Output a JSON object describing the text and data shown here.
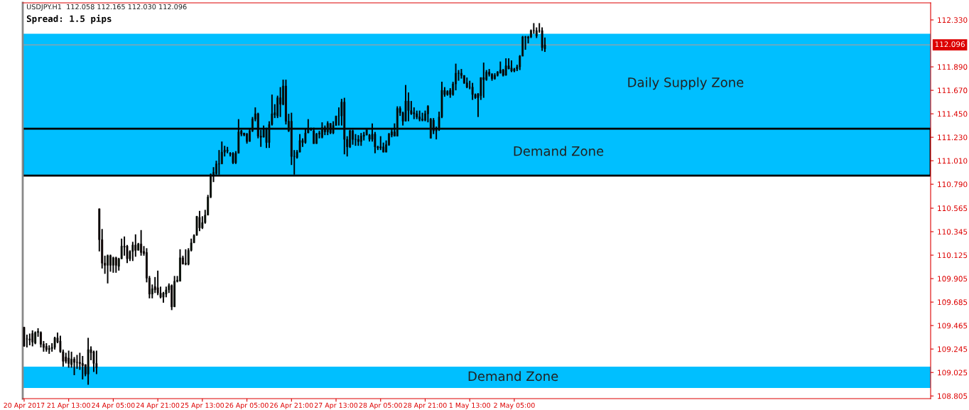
{
  "chart_data": {
    "type": "candlestick",
    "title": "USDJPY.H1  112.058 112.165 112.030 112.096",
    "subtitle": "Spread: 1.5 pips",
    "categories": [
      "20 Apr 2017",
      null,
      null,
      null,
      null,
      null,
      null,
      null,
      null,
      null,
      null,
      null,
      null,
      null,
      null,
      null,
      "21 Apr 13:00",
      null,
      null,
      null,
      null,
      null,
      null,
      null,
      null,
      null,
      null,
      null,
      null,
      null,
      null,
      null,
      "24 Apr 05:00",
      null,
      null,
      null,
      null,
      null,
      null,
      null,
      null,
      null,
      null,
      null,
      null,
      null,
      null,
      null,
      "24 Apr 21:00",
      null,
      null,
      null,
      null,
      null,
      null,
      null,
      null,
      null,
      null,
      null,
      null,
      null,
      null,
      null,
      "25 Apr 13:00",
      null,
      null,
      null,
      null,
      null,
      null,
      null,
      null,
      null,
      null,
      null,
      null,
      null,
      null,
      null,
      "26 Apr 05:00",
      null,
      null,
      null,
      null,
      null,
      null,
      null,
      null,
      null,
      null,
      null,
      null,
      null,
      null,
      null,
      "26 Apr 21:00",
      null,
      null,
      null,
      null,
      null,
      null,
      null,
      null,
      null,
      null,
      null,
      null,
      null,
      null,
      null,
      "27 Apr 13:00",
      null,
      null,
      null,
      null,
      null,
      null,
      null,
      null,
      null,
      null,
      null,
      null,
      null,
      null,
      null,
      "28 Apr 05:00",
      null,
      null,
      null,
      null,
      null,
      null,
      null,
      null,
      null,
      null,
      null,
      null,
      null,
      null,
      null,
      "28 Apr 21:00",
      null,
      null,
      null,
      null,
      null,
      null,
      null,
      null,
      null,
      null,
      null,
      null,
      null,
      null,
      null,
      "1 May 13:00",
      null,
      null,
      null,
      null,
      null,
      null,
      null,
      null,
      null,
      null,
      null,
      null,
      null,
      null,
      null,
      "2 May 05:00",
      null,
      null,
      null,
      null,
      null,
      null,
      null,
      null,
      null,
      null,
      null,
      null,
      null,
      null,
      null,
      null,
      null,
      null,
      null,
      null,
      null,
      null,
      null,
      null,
      null,
      null,
      null,
      null,
      null,
      null,
      null,
      null,
      null,
      null,
      null,
      null,
      null,
      null,
      null,
      null,
      null,
      null,
      null,
      null,
      null,
      null,
      null,
      null,
      null,
      null,
      null,
      null,
      null,
      null,
      null,
      null,
      null,
      null,
      null,
      null,
      null,
      null,
      null,
      null,
      null,
      null,
      null,
      null,
      null,
      null,
      null,
      null,
      null,
      null,
      null,
      null,
      null,
      null,
      null,
      null,
      null,
      null,
      null,
      null,
      null,
      null,
      null,
      null,
      null,
      null,
      null,
      null,
      null,
      null,
      null,
      null,
      null,
      null,
      null,
      null,
      null,
      null,
      null,
      null,
      null,
      null,
      null,
      null,
      null,
      null,
      null,
      null,
      null,
      null,
      null,
      null,
      null,
      null,
      null,
      null,
      null,
      null,
      null,
      null,
      null,
      null,
      null,
      null,
      null,
      null,
      null,
      null,
      null,
      null,
      null,
      null,
      null,
      null,
      null,
      null,
      null,
      null,
      null,
      null,
      null,
      null,
      null,
      null,
      null
    ],
    "ohlc": [
      [
        109.45,
        109.45,
        109.27,
        109.27
      ],
      [
        109.34,
        109.38,
        109.26,
        109.34
      ],
      [
        109.34,
        109.39,
        109.28,
        109.33
      ],
      [
        109.39,
        109.42,
        109.27,
        109.31
      ],
      [
        109.3,
        109.41,
        109.29,
        109.4
      ],
      [
        109.4,
        109.44,
        109.36,
        109.41
      ],
      [
        109.4,
        109.41,
        109.26,
        109.29
      ],
      [
        109.29,
        109.32,
        109.22,
        109.26
      ],
      [
        109.27,
        109.3,
        109.22,
        109.24
      ],
      [
        109.24,
        109.28,
        109.2,
        109.25
      ],
      [
        109.25,
        109.3,
        109.22,
        109.26
      ],
      [
        109.26,
        109.36,
        109.24,
        109.35
      ],
      [
        109.35,
        109.4,
        109.3,
        109.31
      ],
      [
        109.32,
        109.37,
        109.21,
        109.22
      ],
      [
        109.22,
        109.24,
        109.08,
        109.13
      ],
      [
        109.17,
        109.21,
        109.11,
        109.13
      ],
      [
        109.16,
        109.23,
        109.07,
        109.11
      ],
      [
        109.1,
        109.22,
        109.07,
        109.15
      ],
      [
        109.15,
        109.17,
        109.0,
        109.12
      ],
      [
        109.12,
        109.19,
        109.06,
        109.12
      ],
      [
        109.12,
        109.21,
        109.05,
        109.11
      ],
      [
        109.11,
        109.18,
        108.96,
        109.09
      ],
      [
        109.1,
        109.1,
        108.99,
        109.01
      ],
      [
        109.01,
        109.35,
        108.91,
        109.24
      ],
      [
        109.24,
        109.27,
        109.14,
        109.21
      ],
      [
        109.22,
        109.23,
        109.03,
        109.11
      ],
      [
        109.11,
        109.23,
        109.01,
        109.07
      ],
      [
        110.56,
        110.56,
        110.16,
        110.27
      ],
      [
        110.27,
        110.37,
        110.0,
        110.05
      ],
      [
        110.05,
        110.12,
        109.95,
        110.03
      ],
      [
        110.03,
        110.13,
        109.86,
        110.12
      ],
      [
        110.12,
        110.13,
        109.97,
        110.03
      ],
      [
        110.03,
        110.11,
        109.96,
        110.1
      ],
      [
        110.1,
        110.11,
        109.96,
        110.03
      ],
      [
        110.02,
        110.1,
        109.98,
        110.09
      ],
      [
        110.09,
        110.28,
        110.09,
        110.21
      ],
      [
        110.21,
        110.3,
        110.12,
        110.2
      ],
      [
        110.21,
        110.22,
        110.05,
        110.09
      ],
      [
        110.09,
        110.17,
        110.07,
        110.16
      ],
      [
        110.16,
        110.25,
        110.07,
        110.22
      ],
      [
        110.22,
        110.32,
        110.11,
        110.17
      ],
      [
        110.17,
        110.24,
        110.17,
        110.23
      ],
      [
        110.23,
        110.36,
        110.12,
        110.15
      ],
      [
        110.16,
        110.21,
        110.12,
        110.14
      ],
      [
        110.15,
        110.19,
        109.87,
        109.91
      ],
      [
        109.91,
        109.93,
        109.72,
        109.76
      ],
      [
        109.76,
        109.85,
        109.72,
        109.81
      ],
      [
        109.83,
        109.92,
        109.77,
        109.8
      ],
      [
        109.82,
        109.98,
        109.75,
        109.77
      ],
      [
        109.77,
        109.83,
        109.72,
        109.73
      ],
      [
        109.73,
        109.78,
        109.68,
        109.77
      ],
      [
        109.76,
        109.83,
        109.73,
        109.8
      ],
      [
        109.8,
        109.86,
        109.77,
        109.84
      ],
      [
        109.84,
        109.85,
        109.61,
        109.64
      ],
      [
        109.64,
        109.93,
        109.64,
        109.88
      ],
      [
        109.88,
        109.93,
        109.87,
        109.89
      ],
      [
        109.88,
        110.18,
        109.88,
        110.1
      ],
      [
        110.1,
        110.12,
        110.04,
        110.04
      ],
      [
        110.04,
        110.18,
        110.03,
        110.05
      ],
      [
        110.04,
        110.19,
        110.03,
        110.17
      ],
      [
        110.17,
        110.28,
        110.16,
        110.24
      ],
      [
        110.24,
        110.32,
        110.24,
        110.31
      ],
      [
        110.31,
        110.49,
        110.31,
        110.49
      ],
      [
        110.48,
        110.54,
        110.35,
        110.38
      ],
      [
        110.38,
        110.49,
        110.37,
        110.43
      ],
      [
        110.43,
        110.55,
        110.42,
        110.5
      ],
      [
        110.5,
        110.69,
        110.5,
        110.67
      ],
      [
        110.67,
        110.89,
        110.66,
        110.88
      ],
      [
        110.88,
        110.95,
        110.81,
        110.9
      ],
      [
        110.89,
        111.01,
        110.88,
        110.98
      ],
      [
        110.98,
        111.11,
        110.88,
        110.98
      ],
      [
        110.98,
        111.19,
        110.98,
        111.09
      ],
      [
        111.09,
        111.15,
        111.05,
        111.11
      ],
      [
        111.1,
        111.14,
        111.08,
        111.11
      ],
      [
        111.08,
        111.09,
        111.05,
        111.07
      ],
      [
        111.08,
        111.09,
        110.98,
        110.99
      ],
      [
        110.99,
        111.1,
        110.98,
        111.08
      ],
      [
        111.08,
        111.4,
        111.08,
        111.28
      ],
      [
        111.29,
        111.3,
        111.24,
        111.26
      ],
      [
        111.27,
        111.27,
        111.24,
        111.25
      ],
      [
        111.26,
        111.27,
        111.17,
        111.19
      ],
      [
        111.19,
        111.31,
        111.19,
        111.29
      ],
      [
        111.29,
        111.42,
        111.28,
        111.4
      ],
      [
        111.4,
        111.51,
        111.38,
        111.45
      ],
      [
        111.45,
        111.46,
        111.22,
        111.24
      ],
      [
        111.24,
        111.3,
        111.14,
        111.23
      ],
      [
        111.23,
        111.34,
        111.23,
        111.3
      ],
      [
        111.3,
        111.32,
        111.13,
        111.18
      ],
      [
        111.18,
        111.38,
        111.13,
        111.35
      ],
      [
        111.35,
        111.63,
        111.34,
        111.45
      ],
      [
        111.44,
        111.54,
        111.41,
        111.46
      ],
      [
        111.43,
        111.62,
        111.41,
        111.6
      ],
      [
        111.6,
        111.7,
        111.42,
        111.54
      ],
      [
        111.54,
        111.77,
        111.53,
        111.71
      ],
      [
        111.71,
        111.77,
        111.35,
        111.38
      ],
      [
        111.29,
        111.45,
        111.28,
        111.38
      ],
      [
        111.38,
        111.46,
        110.97,
        111.05
      ],
      [
        111.05,
        111.11,
        110.88,
        111.05
      ],
      [
        111.04,
        111.11,
        111.03,
        111.09
      ],
      [
        111.09,
        111.26,
        111.09,
        111.2
      ],
      [
        111.18,
        111.22,
        111.14,
        111.2
      ],
      [
        111.18,
        111.31,
        111.17,
        111.27
      ],
      [
        111.27,
        111.4,
        111.27,
        111.31
      ],
      [
        111.31,
        111.32,
        111.29,
        111.3
      ],
      [
        111.29,
        111.32,
        111.17,
        111.17
      ],
      [
        111.17,
        111.27,
        111.17,
        111.26
      ],
      [
        111.26,
        111.29,
        111.22,
        111.27
      ],
      [
        111.23,
        111.37,
        111.22,
        111.32
      ],
      [
        111.32,
        111.34,
        111.25,
        111.28
      ],
      [
        111.28,
        111.38,
        111.25,
        111.36
      ],
      [
        111.36,
        111.36,
        111.26,
        111.27
      ],
      [
        111.27,
        111.38,
        111.26,
        111.34
      ],
      [
        111.34,
        111.43,
        111.34,
        111.43
      ],
      [
        111.43,
        111.51,
        111.34,
        111.43
      ],
      [
        111.43,
        111.59,
        111.34,
        111.56
      ],
      [
        111.56,
        111.6,
        111.07,
        111.21
      ],
      [
        111.21,
        111.24,
        111.05,
        111.14
      ],
      [
        111.14,
        111.3,
        111.13,
        111.29
      ],
      [
        111.29,
        111.3,
        111.16,
        111.21
      ],
      [
        111.21,
        111.26,
        111.15,
        111.21
      ],
      [
        111.21,
        111.25,
        111.15,
        111.19
      ],
      [
        111.19,
        111.27,
        111.15,
        111.24
      ],
      [
        111.24,
        111.28,
        111.2,
        111.25
      ],
      [
        111.25,
        111.31,
        111.25,
        111.31
      ],
      [
        111.25,
        111.26,
        111.19,
        111.21
      ],
      [
        111.21,
        111.36,
        111.19,
        111.26
      ],
      [
        111.26,
        111.28,
        111.08,
        111.14
      ],
      [
        111.14,
        111.15,
        111.11,
        111.13
      ],
      [
        111.14,
        111.24,
        111.11,
        111.13
      ],
      [
        111.14,
        111.18,
        111.09,
        111.09
      ],
      [
        111.09,
        111.2,
        111.09,
        111.16
      ],
      [
        111.16,
        111.27,
        111.15,
        111.26
      ],
      [
        111.25,
        111.31,
        111.23,
        111.28
      ],
      [
        111.28,
        111.36,
        111.24,
        111.24
      ],
      [
        111.24,
        111.52,
        111.24,
        111.5
      ],
      [
        111.5,
        111.52,
        111.43,
        111.46
      ],
      [
        111.46,
        111.47,
        111.34,
        111.38
      ],
      [
        111.38,
        111.72,
        111.38,
        111.57
      ],
      [
        111.57,
        111.65,
        111.38,
        111.48
      ],
      [
        111.48,
        111.57,
        111.44,
        111.45
      ],
      [
        111.46,
        111.51,
        111.4,
        111.45
      ],
      [
        111.45,
        111.48,
        111.4,
        111.42
      ],
      [
        111.42,
        111.48,
        111.38,
        111.4
      ],
      [
        111.4,
        111.46,
        111.38,
        111.39
      ],
      [
        111.39,
        111.48,
        111.38,
        111.45
      ],
      [
        111.45,
        111.53,
        111.37,
        111.52
      ],
      [
        111.22,
        111.41,
        111.22,
        111.4
      ],
      [
        111.39,
        111.41,
        111.26,
        111.29
      ],
      [
        111.29,
        111.33,
        111.21,
        111.3
      ],
      [
        111.3,
        111.47,
        111.29,
        111.42
      ],
      [
        111.42,
        111.75,
        111.41,
        111.67
      ],
      [
        111.67,
        111.7,
        111.61,
        111.63
      ],
      [
        111.63,
        111.67,
        111.62,
        111.66
      ],
      [
        111.67,
        111.69,
        111.6,
        111.63
      ],
      [
        111.63,
        111.75,
        111.62,
        111.73
      ],
      [
        111.73,
        111.92,
        111.67,
        111.83
      ],
      [
        111.83,
        111.86,
        111.76,
        111.83
      ],
      [
        111.83,
        111.87,
        111.78,
        111.81
      ],
      [
        111.81,
        111.81,
        111.73,
        111.74
      ],
      [
        111.74,
        111.79,
        111.69,
        111.7
      ],
      [
        111.7,
        111.76,
        111.68,
        111.7
      ],
      [
        111.7,
        111.74,
        111.58,
        111.63
      ],
      [
        111.63,
        111.64,
        111.59,
        111.6
      ],
      [
        111.64,
        111.64,
        111.42,
        111.6
      ],
      [
        111.62,
        111.79,
        111.58,
        111.79
      ],
      [
        111.79,
        111.93,
        111.6,
        111.77
      ],
      [
        111.77,
        111.86,
        111.76,
        111.84
      ],
      [
        111.84,
        111.87,
        111.8,
        111.82
      ],
      [
        111.82,
        111.83,
        111.76,
        111.78
      ],
      [
        111.78,
        111.83,
        111.77,
        111.81
      ],
      [
        111.81,
        111.85,
        111.8,
        111.84
      ],
      [
        111.83,
        111.94,
        111.83,
        111.86
      ],
      [
        111.86,
        111.87,
        111.8,
        111.81
      ],
      [
        111.81,
        111.97,
        111.81,
        111.9
      ],
      [
        111.9,
        111.97,
        111.87,
        111.87
      ],
      [
        111.88,
        111.95,
        111.84,
        111.85
      ],
      [
        111.85,
        111.88,
        111.84,
        111.87
      ],
      [
        111.87,
        111.91,
        111.85,
        111.89
      ],
      [
        111.89,
        112.0,
        111.86,
        111.99
      ],
      [
        111.99,
        112.18,
        111.99,
        112.17
      ],
      [
        112.17,
        112.18,
        112.05,
        112.17
      ],
      [
        112.17,
        112.18,
        112.11,
        112.16
      ],
      [
        112.17,
        112.24,
        112.16,
        112.23
      ],
      [
        112.23,
        112.3,
        112.2,
        112.23
      ],
      [
        112.18,
        112.26,
        112.16,
        112.23
      ],
      [
        112.23,
        112.3,
        112.21,
        112.23
      ],
      [
        112.23,
        112.26,
        112.04,
        112.07
      ],
      [
        112.058,
        112.165,
        112.03,
        112.096
      ],
      null,
      null,
      null,
      null,
      null,
      null,
      null,
      null,
      null,
      null,
      null,
      null,
      null,
      null,
      null,
      null,
      null,
      null,
      null,
      null,
      null,
      null,
      null,
      null,
      null,
      null,
      null,
      null,
      null,
      null,
      null,
      null,
      null,
      null,
      null,
      null,
      null,
      null,
      null,
      null,
      null,
      null,
      null,
      null,
      null,
      null,
      null,
      null,
      null,
      null,
      null,
      null,
      null,
      null,
      null,
      null,
      null,
      null,
      null,
      null,
      null,
      null,
      null,
      null,
      null,
      null,
      null,
      null,
      null,
      null,
      null,
      null,
      null,
      null,
      null,
      null,
      null,
      null,
      null,
      null,
      null,
      null,
      null,
      null,
      null,
      null,
      null,
      null,
      null,
      null,
      null,
      null,
      null,
      null,
      null,
      null,
      null,
      null,
      null,
      null,
      null,
      null,
      null,
      null,
      null,
      null,
      null,
      null,
      null,
      null,
      null,
      null,
      null,
      null,
      null,
      null,
      null,
      null,
      null,
      null,
      null,
      null,
      null,
      null,
      null,
      null,
      null,
      null,
      null,
      null,
      null,
      null,
      null,
      null,
      null,
      null,
      null,
      null
    ],
    "ylim": [
      108.78,
      112.49
    ],
    "yticks": [
      {
        "value": 112.33,
        "label": "112.330"
      },
      {
        "value": 111.89,
        "label": "111.890"
      },
      {
        "value": 111.67,
        "label": "111.670"
      },
      {
        "value": 111.45,
        "label": "111.450"
      },
      {
        "value": 111.23,
        "label": "111.230"
      },
      {
        "value": 111.01,
        "label": "111.010"
      },
      {
        "value": 110.79,
        "label": "110.790"
      },
      {
        "value": 110.565,
        "label": "110.565"
      },
      {
        "value": 110.345,
        "label": "110.345"
      },
      {
        "value": 110.125,
        "label": "110.125"
      },
      {
        "value": 109.905,
        "label": "109.905"
      },
      {
        "value": 109.685,
        "label": "109.685"
      },
      {
        "value": 109.465,
        "label": "109.465"
      },
      {
        "value": 109.245,
        "label": "109.245"
      },
      {
        "value": 109.025,
        "label": "109.025"
      },
      {
        "value": 108.805,
        "label": "108.805"
      }
    ],
    "bands": [
      {
        "axis": "y",
        "from": 110.87,
        "to": 112.2,
        "label": "Daily Supply Zone",
        "color": "#00bfff"
      },
      {
        "axis": "y",
        "from": 110.87,
        "to": 111.31,
        "label": "Demand Zone",
        "color": "#00bfff"
      },
      {
        "axis": "y",
        "from": 108.88,
        "to": 109.08,
        "label": "Demand Zone",
        "color": "#00bfff"
      }
    ],
    "ref_lines": [
      {
        "axis": "y",
        "value": 112.096,
        "label": "112.096",
        "color": "#a0a0a0"
      }
    ]
  }
}
